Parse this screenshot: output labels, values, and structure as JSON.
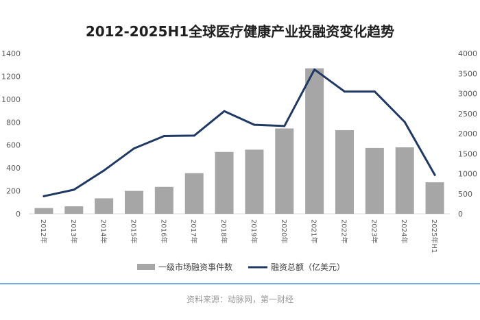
{
  "chart_data": {
    "type": "bar",
    "title": "2012-2025H1全球医疗健康产业投融资变化趋势",
    "categories": [
      "2012年",
      "2013年",
      "2014年",
      "2015年",
      "2016年",
      "2017年",
      "2018年",
      "2019年",
      "2020年",
      "2021年",
      "2022年",
      "2023年",
      "2024年",
      "2025年H1"
    ],
    "series": [
      {
        "name": "一级市场融资事件数",
        "type": "bar",
        "axis": "left",
        "color": "#a6a6a6",
        "values": [
          50,
          65,
          135,
          200,
          235,
          355,
          540,
          560,
          745,
          1270,
          730,
          575,
          580,
          275
        ]
      },
      {
        "name": "融资总额（亿美元）",
        "type": "line",
        "axis": "right",
        "color": "#1f3864",
        "values": [
          440,
          600,
          1080,
          1630,
          1940,
          1950,
          2560,
          2220,
          2190,
          3600,
          3050,
          3050,
          2290,
          970
        ]
      }
    ],
    "y_left": {
      "ylim": [
        0,
        1400
      ],
      "ticks": [
        0,
        200,
        400,
        600,
        800,
        1000,
        1200,
        1400
      ]
    },
    "y_right": {
      "ylim": [
        0,
        4000
      ],
      "ticks": [
        0,
        500,
        1000,
        1500,
        2000,
        2500,
        3000,
        3500,
        4000
      ]
    },
    "grid": false,
    "legend": "bottom",
    "source": "资料来源：动脉网，第一财经",
    "colors": {
      "bar": "#a6a6a6",
      "line": "#1f3864",
      "divider": "#4a90d9"
    }
  }
}
